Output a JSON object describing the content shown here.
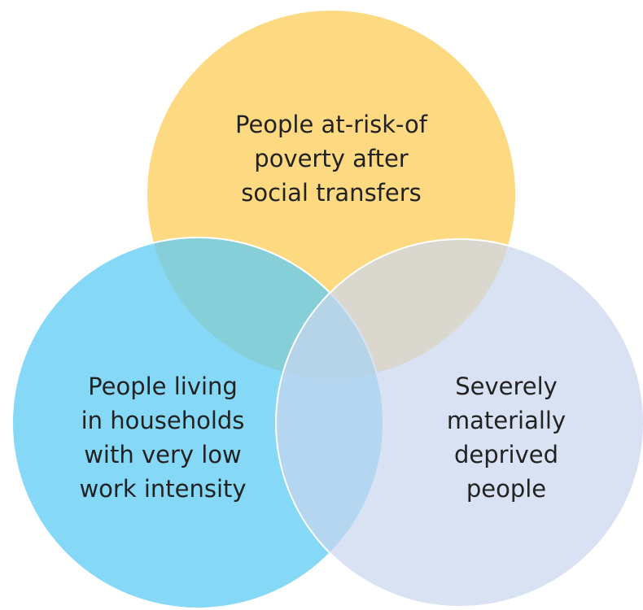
{
  "nodes": [
    {
      "label_lines": [
        "People at-risk-of",
        "poverty after",
        "social transfers"
      ]
    },
    {
      "label_lines": [
        "People living",
        "in households",
        "with very low",
        "work intensity"
      ]
    },
    {
      "label_lines": [
        "Severely",
        "materially",
        "deprived",
        "people"
      ]
    }
  ]
}
